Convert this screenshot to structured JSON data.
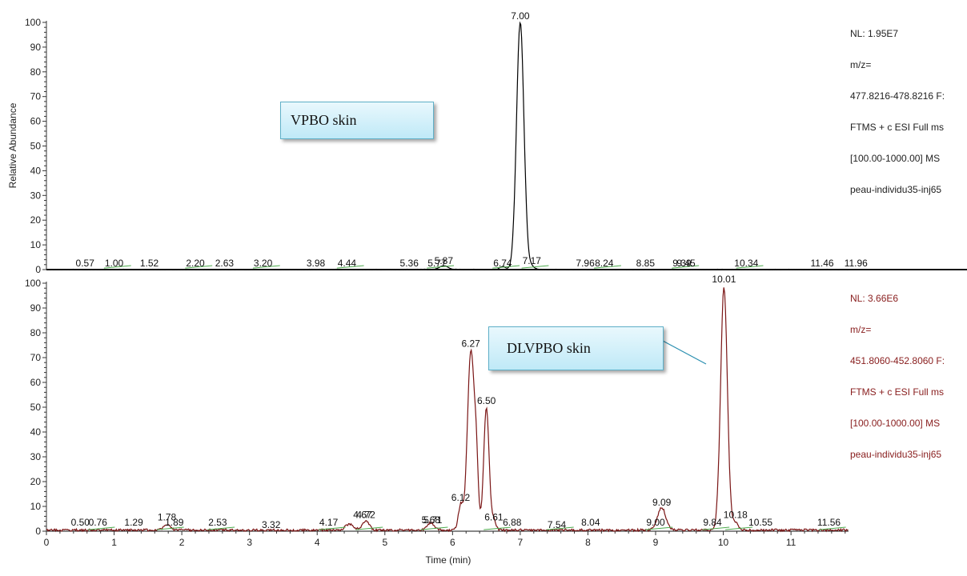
{
  "chart_data": [
    {
      "type": "line",
      "ylabel": "Relative Abundance",
      "xlim": [
        0,
        11.85
      ],
      "ylim": [
        0,
        100
      ],
      "yticks": [
        0,
        10,
        20,
        30,
        40,
        50,
        60,
        70,
        80,
        90,
        100
      ],
      "ytick_labels": [
        "0",
        "10",
        "20",
        "30",
        "40",
        "50",
        "60",
        "70",
        "80",
        "90",
        "100"
      ],
      "info": [
        "NL: 1.95E7",
        "m/z=",
        "477.8216-478.8216 F:",
        "FTMS + c ESI Full ms",
        "[100.00-1000.00]  MS",
        "peau-individu35-inj65"
      ],
      "annotation": "VPBO skin",
      "color": "#000000",
      "peak_labels": [
        {
          "x": 0.57,
          "y": 0,
          "label": "0.57"
        },
        {
          "x": 1.0,
          "y": 0,
          "label": "1.00"
        },
        {
          "x": 1.52,
          "y": 0,
          "label": "1.52"
        },
        {
          "x": 2.2,
          "y": 0,
          "label": "2.20"
        },
        {
          "x": 2.63,
          "y": 0,
          "label": "2.63"
        },
        {
          "x": 3.2,
          "y": 0,
          "label": "3.20"
        },
        {
          "x": 3.98,
          "y": 0,
          "label": "3.98"
        },
        {
          "x": 4.44,
          "y": 0,
          "label": "4.44"
        },
        {
          "x": 5.36,
          "y": 0,
          "label": "5.36"
        },
        {
          "x": 5.77,
          "y": 0,
          "label": "5.77"
        },
        {
          "x": 5.87,
          "y": 1,
          "label": "5.87"
        },
        {
          "x": 6.74,
          "y": 0,
          "label": "6.74"
        },
        {
          "x": 7.0,
          "y": 100,
          "label": "7.00"
        },
        {
          "x": 7.17,
          "y": 1,
          "label": "7.17"
        },
        {
          "x": 7.96,
          "y": 0,
          "label": "7.96"
        },
        {
          "x": 8.24,
          "y": 0,
          "label": "8.24"
        },
        {
          "x": 8.85,
          "y": 0,
          "label": "8.85"
        },
        {
          "x": 9.39,
          "y": 0,
          "label": "9.39"
        },
        {
          "x": 9.45,
          "y": 0,
          "label": "9.45"
        },
        {
          "x": 10.34,
          "y": 0,
          "label": "10.34"
        },
        {
          "x": 11.46,
          "y": 0,
          "label": "11.46"
        },
        {
          "x": 11.96,
          "y": 0,
          "label": "11.96"
        }
      ],
      "peaks": [
        {
          "x": 5.87,
          "y": 1.5,
          "w": 0.06
        },
        {
          "x": 6.74,
          "y": 1.2,
          "w": 0.04
        },
        {
          "x": 7.0,
          "y": 100,
          "w": 0.055
        },
        {
          "x": 7.17,
          "y": 1.2,
          "w": 0.04
        }
      ]
    },
    {
      "type": "line",
      "xlabel": "Time (min)",
      "ylabel": "",
      "xlim": [
        0,
        11.85
      ],
      "ylim": [
        0,
        100
      ],
      "xticks": [
        0,
        1,
        2,
        3,
        4,
        5,
        6,
        7,
        8,
        9,
        10,
        11
      ],
      "xtick_labels": [
        "0",
        "1",
        "2",
        "3",
        "4",
        "5",
        "6",
        "7",
        "8",
        "9",
        "10",
        "11"
      ],
      "yticks": [
        0,
        10,
        20,
        30,
        40,
        50,
        60,
        70,
        80,
        90,
        100
      ],
      "ytick_labels": [
        "0",
        "10",
        "20",
        "30",
        "40",
        "50",
        "60",
        "70",
        "80",
        "90",
        "100"
      ],
      "info": [
        "NL: 3.66E6",
        "m/z=",
        "451.8060-452.8060 F:",
        "FTMS + c ESI Full ms",
        "[100.00-1000.00]  MS",
        "peau-individu35-inj65"
      ],
      "annotation": "DLVPBO skin",
      "color": "#7a1515",
      "peak_labels": [
        {
          "x": 0.5,
          "y": 1,
          "label": "0.50"
        },
        {
          "x": 0.76,
          "y": 1,
          "label": "0.76"
        },
        {
          "x": 1.29,
          "y": 1,
          "label": "1.29"
        },
        {
          "x": 1.78,
          "y": 3,
          "label": "1.78"
        },
        {
          "x": 1.89,
          "y": 1,
          "label": "1.89"
        },
        {
          "x": 2.53,
          "y": 1,
          "label": "2.53"
        },
        {
          "x": 3.32,
          "y": 0,
          "label": "3.32"
        },
        {
          "x": 4.17,
          "y": 1,
          "label": "4.17"
        },
        {
          "x": 4.67,
          "y": 4,
          "label": "4.67"
        },
        {
          "x": 4.72,
          "y": 4,
          "label": "4.72"
        },
        {
          "x": 5.71,
          "y": 2,
          "label": "5.71"
        },
        {
          "x": 5.68,
          "y": 2,
          "label": "5.68"
        },
        {
          "x": 6.12,
          "y": 11,
          "label": "6.12"
        },
        {
          "x": 6.27,
          "y": 73,
          "label": "6.27"
        },
        {
          "x": 6.5,
          "y": 50,
          "label": "6.50"
        },
        {
          "x": 6.61,
          "y": 3,
          "label": "6.61"
        },
        {
          "x": 6.88,
          "y": 1,
          "label": "6.88"
        },
        {
          "x": 7.54,
          "y": 0,
          "label": "7.54"
        },
        {
          "x": 8.04,
          "y": 1,
          "label": "8.04"
        },
        {
          "x": 9.0,
          "y": 1,
          "label": "9.00"
        },
        {
          "x": 9.09,
          "y": 9,
          "label": "9.09"
        },
        {
          "x": 9.84,
          "y": 1,
          "label": "9.84"
        },
        {
          "x": 10.01,
          "y": 99,
          "label": "10.01"
        },
        {
          "x": 10.18,
          "y": 4,
          "label": "10.18"
        },
        {
          "x": 10.55,
          "y": 1,
          "label": "10.55"
        },
        {
          "x": 11.56,
          "y": 1,
          "label": "11.56"
        }
      ],
      "peaks": [
        {
          "x": 1.78,
          "y": 2.0,
          "w": 0.05
        },
        {
          "x": 4.48,
          "y": 2.5,
          "w": 0.06
        },
        {
          "x": 4.72,
          "y": 3.5,
          "w": 0.05
        },
        {
          "x": 5.68,
          "y": 3.0,
          "w": 0.05
        },
        {
          "x": 6.12,
          "y": 10,
          "w": 0.035
        },
        {
          "x": 6.27,
          "y": 72,
          "w": 0.05
        },
        {
          "x": 6.35,
          "y": 22,
          "w": 0.03
        },
        {
          "x": 6.5,
          "y": 49,
          "w": 0.04
        },
        {
          "x": 6.61,
          "y": 4,
          "w": 0.03
        },
        {
          "x": 9.09,
          "y": 9,
          "w": 0.06
        },
        {
          "x": 10.01,
          "y": 98,
          "w": 0.05
        },
        {
          "x": 10.18,
          "y": 3,
          "w": 0.04
        }
      ]
    }
  ]
}
